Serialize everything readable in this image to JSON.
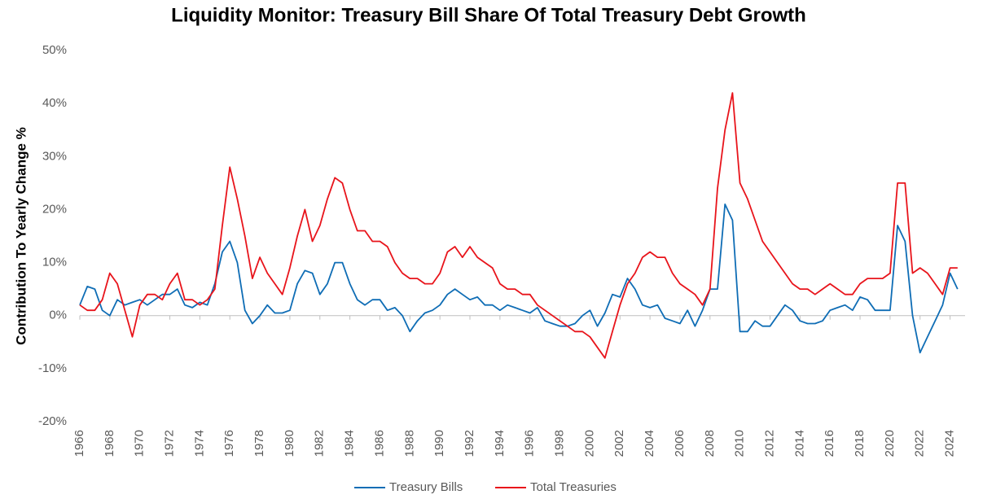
{
  "chart_data": {
    "type": "line",
    "title": "Liquidity Monitor: Treasury Bill Share Of Total Treasury Debt Growth",
    "y_label": "Contribution To Yearly Change %",
    "x": [
      1966,
      1966.5,
      1967,
      1967.5,
      1968,
      1968.5,
      1969,
      1969.5,
      1970,
      1970.5,
      1971,
      1971.5,
      1972,
      1972.5,
      1973,
      1973.5,
      1974,
      1974.5,
      1975,
      1975.5,
      1976,
      1976.5,
      1977,
      1977.5,
      1978,
      1978.5,
      1979,
      1979.5,
      1980,
      1980.5,
      1981,
      1981.5,
      1982,
      1982.5,
      1983,
      1983.5,
      1984,
      1984.5,
      1985,
      1985.5,
      1986,
      1986.5,
      1987,
      1987.5,
      1988,
      1988.5,
      1989,
      1989.5,
      1990,
      1990.5,
      1991,
      1991.5,
      1992,
      1992.5,
      1993,
      1993.5,
      1994,
      1994.5,
      1995,
      1995.5,
      1996,
      1996.5,
      1997,
      1997.5,
      1998,
      1998.5,
      1999,
      1999.5,
      2000,
      2000.5,
      2001,
      2001.5,
      2002,
      2002.5,
      2003,
      2003.5,
      2004,
      2004.5,
      2005,
      2005.5,
      2006,
      2006.5,
      2007,
      2007.5,
      2008,
      2008.5,
      2009,
      2009.5,
      2010,
      2010.5,
      2011,
      2011.5,
      2012,
      2012.5,
      2013,
      2013.5,
      2014,
      2014.5,
      2015,
      2015.5,
      2016,
      2016.5,
      2017,
      2017.5,
      2018,
      2018.5,
      2019,
      2019.5,
      2020,
      2020.5,
      2021,
      2021.5,
      2022,
      2022.5,
      2023,
      2023.5,
      2024,
      2024.5
    ],
    "series": [
      {
        "name": "Treasury Bills",
        "color": "#0f6db5",
        "values": [
          2,
          5.5,
          5,
          1,
          0,
          3,
          2,
          2.5,
          3,
          2,
          3,
          4,
          4,
          5,
          2,
          1.5,
          2.5,
          2,
          6,
          12,
          14,
          10,
          1,
          -1.5,
          0,
          2,
          0.5,
          0.5,
          1,
          6,
          8.5,
          8,
          4,
          6,
          10,
          10,
          6,
          3,
          2,
          3,
          3,
          1,
          1.5,
          0,
          -3,
          -1,
          0.5,
          1,
          2,
          4,
          5,
          4,
          3,
          3.5,
          2,
          2,
          1,
          2,
          1.5,
          1,
          0.5,
          1.5,
          -1,
          -1.5,
          -2,
          -2,
          -1.5,
          0,
          1,
          -2,
          0.5,
          4,
          3.5,
          7,
          5,
          2,
          1.5,
          2,
          -0.5,
          -1,
          -1.5,
          1,
          -2,
          1,
          5,
          5,
          21,
          18,
          -3,
          -3,
          -1,
          -2,
          -2,
          0,
          2,
          1,
          -1,
          -1.5,
          -1.5,
          -1,
          1,
          1.5,
          2,
          1,
          3.5,
          3,
          1,
          1,
          1,
          17,
          14,
          0,
          -7,
          -4,
          -1,
          2,
          8,
          5
        ]
      },
      {
        "name": "Total Treasuries",
        "color": "#e8141b",
        "values": [
          2,
          1,
          1,
          3,
          8,
          6,
          1,
          -4,
          2,
          4,
          4,
          3,
          6,
          8,
          3,
          3,
          2,
          3,
          5,
          17,
          28,
          22,
          15,
          7,
          11,
          8,
          6,
          4,
          9,
          15,
          20,
          14,
          17,
          22,
          26,
          25,
          20,
          16,
          16,
          14,
          14,
          13,
          10,
          8,
          7,
          7,
          6,
          6,
          8,
          12,
          13,
          11,
          13,
          11,
          10,
          9,
          6,
          5,
          5,
          4,
          4,
          2,
          1,
          0,
          -1,
          -2,
          -3,
          -3,
          -4,
          -6,
          -8,
          -3,
          2,
          6,
          8,
          11,
          12,
          11,
          11,
          8,
          6,
          5,
          4,
          2,
          5,
          24,
          35,
          42,
          25,
          22,
          18,
          14,
          12,
          10,
          8,
          6,
          5,
          5,
          4,
          5,
          6,
          5,
          4,
          4,
          6,
          7,
          7,
          7,
          8,
          25,
          25,
          8,
          9,
          8,
          6,
          4,
          9,
          9
        ]
      }
    ],
    "xlim": [
      1966,
      2025
    ],
    "xticks": [
      1966,
      1968,
      1970,
      1972,
      1974,
      1976,
      1978,
      1980,
      1982,
      1984,
      1986,
      1988,
      1990,
      1992,
      1994,
      1996,
      1998,
      2000,
      2002,
      2004,
      2006,
      2008,
      2010,
      2012,
      2014,
      2016,
      2018,
      2020,
      2022,
      2024
    ],
    "ylim": [
      -20,
      50
    ],
    "yticks": [
      {
        "value": -20,
        "label": "-20%"
      },
      {
        "value": -10,
        "label": "-10%"
      },
      {
        "value": 0,
        "label": "0%"
      },
      {
        "value": 10,
        "label": "10%"
      },
      {
        "value": 20,
        "label": "20%"
      },
      {
        "value": 30,
        "label": "30%"
      },
      {
        "value": 40,
        "label": "40%"
      },
      {
        "value": 50,
        "label": "50%"
      }
    ],
    "grid": false,
    "legend": "bottom"
  }
}
